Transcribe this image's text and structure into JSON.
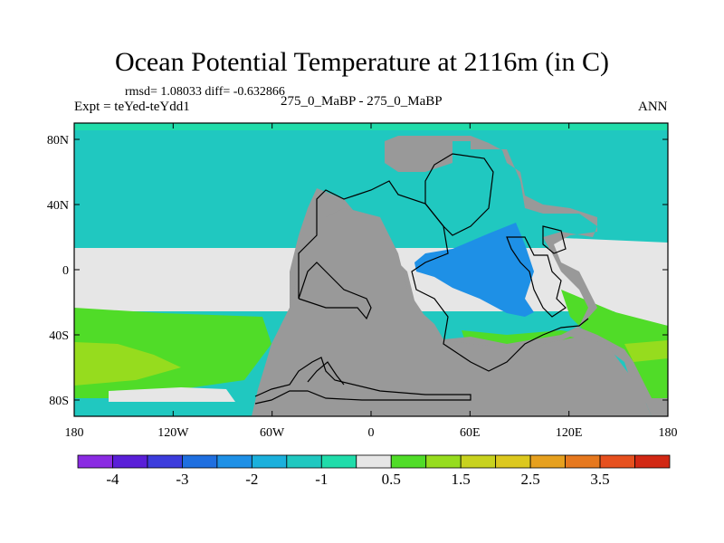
{
  "header": {
    "title": "Ocean Potential Temperature at 2116m (in C)",
    "stats": "rmsd= 1.08033 diff= -0.632866",
    "experiment": "Expt = teYed-teYdd1",
    "case": "275_0_MaBP - 275_0_MaBP",
    "season": "ANN"
  },
  "axes": {
    "lat_ticks": [
      {
        "label": "80N",
        "value": 80
      },
      {
        "label": "40N",
        "value": 40
      },
      {
        "label": "0",
        "value": 0
      },
      {
        "label": "40S",
        "value": -40
      },
      {
        "label": "80S",
        "value": -80
      }
    ],
    "lon_ticks": [
      {
        "label": "180",
        "value": -180
      },
      {
        "label": "120W",
        "value": -120
      },
      {
        "label": "60W",
        "value": -60
      },
      {
        "label": "0",
        "value": 0
      },
      {
        "label": "60E",
        "value": 60
      },
      {
        "label": "120E",
        "value": 120
      },
      {
        "label": "180",
        "value": 180
      }
    ],
    "lon_range": [
      -180,
      180
    ],
    "lat_range": [
      -90,
      90
    ]
  },
  "colorbar": {
    "colors": [
      "#8a2be2",
      "#5a1fd8",
      "#3c3cdc",
      "#1f6fe0",
      "#1e90e6",
      "#1bb0dc",
      "#20c8c0",
      "#20dcaa",
      "#e6e6e6",
      "#50dc28",
      "#96dc1e",
      "#c8d21e",
      "#dcc81e",
      "#e6a01e",
      "#e6781e",
      "#e6501e",
      "#d22814"
    ],
    "labels": [
      {
        "text": "-4",
        "boundary": 1
      },
      {
        "text": "-3",
        "boundary": 3
      },
      {
        "text": "-2",
        "boundary": 5
      },
      {
        "text": "-1",
        "boundary": 7
      },
      {
        "text": "0.5",
        "boundary": 9
      },
      {
        "text": "1.5",
        "boundary": 11
      },
      {
        "text": "2.5",
        "boundary": 13
      },
      {
        "text": "3.5",
        "boundary": 15
      }
    ]
  },
  "field_colors": {
    "land": "#999999",
    "ocean_cold": "#20c8c0",
    "ocean_mid": "#20dcaa",
    "neutral": "#e6e6e6",
    "warm_green": "#50dc28",
    "warm_yellow": "#96dc1e",
    "pool_blue": "#1e90e6"
  }
}
